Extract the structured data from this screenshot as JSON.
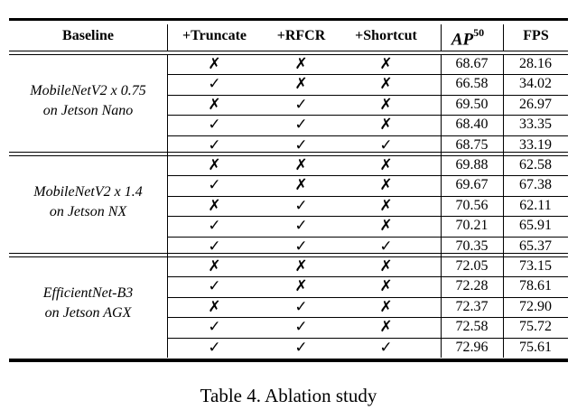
{
  "table": {
    "headers": {
      "baseline": "Baseline",
      "truncate": "+Truncate",
      "rfcr": "+RFCR",
      "shortcut": "+Shortcut",
      "ap_base": "AP",
      "ap_sup": "50",
      "fps": "FPS"
    },
    "check_symbol": "✓",
    "cross_symbol": "✗",
    "groups": [
      {
        "baseline_line1": "MobileNetV2 x 0.75",
        "baseline_line2": "on Jetson Nano",
        "rows": [
          {
            "truncate": "✗",
            "rfcr": "✗",
            "shortcut": "✗",
            "ap50": "68.67",
            "fps": "28.16"
          },
          {
            "truncate": "✓",
            "rfcr": "✗",
            "shortcut": "✗",
            "ap50": "66.58",
            "fps": "34.02"
          },
          {
            "truncate": "✗",
            "rfcr": "✓",
            "shortcut": "✗",
            "ap50": "69.50",
            "fps": "26.97"
          },
          {
            "truncate": "✓",
            "rfcr": "✓",
            "shortcut": "✗",
            "ap50": "68.40",
            "fps": "33.35"
          },
          {
            "truncate": "✓",
            "rfcr": "✓",
            "shortcut": "✓",
            "ap50": "68.75",
            "fps": "33.19"
          }
        ]
      },
      {
        "baseline_line1": "MobileNetV2 x 1.4",
        "baseline_line2": "on Jetson NX",
        "rows": [
          {
            "truncate": "✗",
            "rfcr": "✗",
            "shortcut": "✗",
            "ap50": "69.88",
            "fps": "62.58"
          },
          {
            "truncate": "✓",
            "rfcr": "✗",
            "shortcut": "✗",
            "ap50": "69.67",
            "fps": "67.38"
          },
          {
            "truncate": "✗",
            "rfcr": "✓",
            "shortcut": "✗",
            "ap50": "70.56",
            "fps": "62.11"
          },
          {
            "truncate": "✓",
            "rfcr": "✓",
            "shortcut": "✗",
            "ap50": "70.21",
            "fps": "65.91"
          },
          {
            "truncate": "✓",
            "rfcr": "✓",
            "shortcut": "✓",
            "ap50": "70.35",
            "fps": "65.37"
          }
        ]
      },
      {
        "baseline_line1": "EfficientNet-B3",
        "baseline_line2": "on Jetson AGX",
        "rows": [
          {
            "truncate": "✗",
            "rfcr": "✗",
            "shortcut": "✗",
            "ap50": "72.05",
            "fps": "73.15"
          },
          {
            "truncate": "✓",
            "rfcr": "✗",
            "shortcut": "✗",
            "ap50": "72.28",
            "fps": "78.61"
          },
          {
            "truncate": "✗",
            "rfcr": "✓",
            "shortcut": "✗",
            "ap50": "72.37",
            "fps": "72.90"
          },
          {
            "truncate": "✓",
            "rfcr": "✓",
            "shortcut": "✗",
            "ap50": "72.58",
            "fps": "75.72"
          },
          {
            "truncate": "✓",
            "rfcr": "✓",
            "shortcut": "✓",
            "ap50": "72.96",
            "fps": "75.61"
          }
        ]
      }
    ]
  },
  "caption": "Table 4. Ablation study"
}
